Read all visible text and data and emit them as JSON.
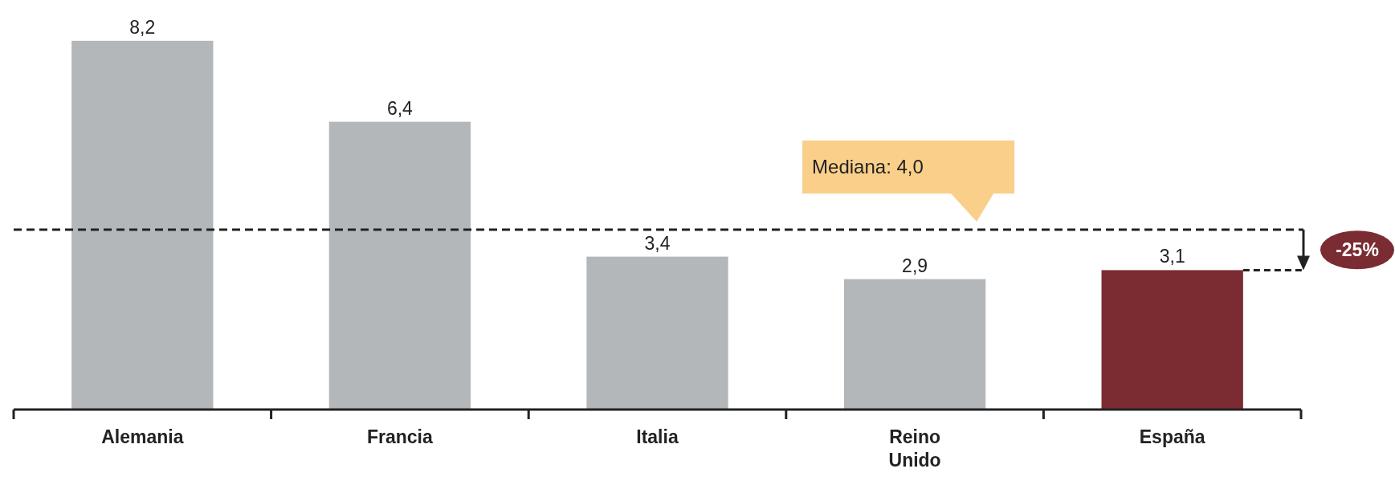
{
  "chart_data": {
    "type": "bar",
    "categories": [
      "Alemania",
      "Francia",
      "Italia",
      "Reino Unido",
      "España"
    ],
    "values": [
      8.2,
      6.4,
      3.4,
      2.9,
      3.1
    ],
    "colors": [
      "#b3b7ba",
      "#b3b7ba",
      "#b3b7ba",
      "#b3b7ba",
      "#7b2c32"
    ],
    "value_labels": [
      "8,2",
      "6,4",
      "3,4",
      "2,9",
      "3,1"
    ],
    "tick_labels": "x",
    "ref_lines": [
      {
        "axis": "y",
        "value": 4.0,
        "label": "Mediana: 4,0",
        "color": "#222222",
        "line_style": "dashed"
      }
    ],
    "annotations": [
      "-25%"
    ]
  }
}
